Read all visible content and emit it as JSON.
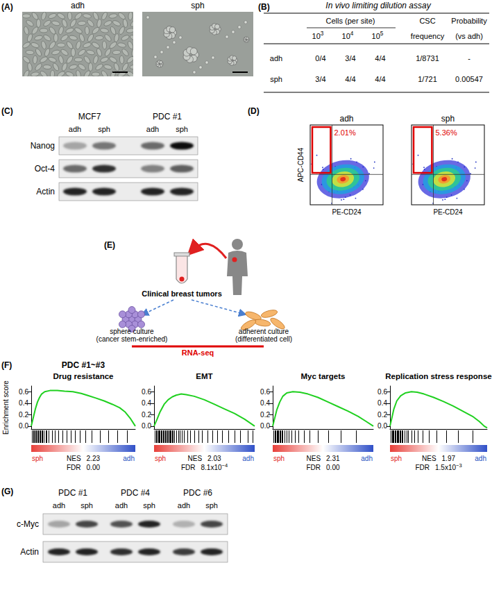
{
  "panels": {
    "A": {
      "label": "(A)",
      "images": [
        "adh",
        "sph"
      ]
    },
    "B": {
      "label": "(B)",
      "title": "In vivo limiting dilution assay",
      "cells_header": "Cells (per site)",
      "doses": [
        {
          "base": "10",
          "sup": "3"
        },
        {
          "base": "10",
          "sup": "4"
        },
        {
          "base": "10",
          "sup": "5"
        }
      ],
      "columns": [
        [
          "CSC",
          "frequency"
        ],
        [
          "Probability",
          "(vs adh)"
        ]
      ],
      "rows": [
        [
          "adh",
          "0/4",
          "3/4",
          "4/4",
          "1/8731",
          "-"
        ],
        [
          "sph",
          "3/4",
          "4/4",
          "4/4",
          "1/721",
          "0.00547"
        ]
      ]
    },
    "C": {
      "label": "(C)",
      "groups": [
        {
          "name": "MCF7",
          "lanes": [
            "adh",
            "sph"
          ]
        },
        {
          "name": "PDC #1",
          "lanes": [
            "adh",
            "sph"
          ]
        }
      ],
      "rows": [
        {
          "name": "Nanog",
          "intensity": [
            0.3,
            0.5,
            0.55,
            0.95
          ]
        },
        {
          "name": "Oct-4",
          "intensity": [
            0.55,
            0.8,
            0.45,
            0.6
          ]
        },
        {
          "name": "Actin",
          "intensity": [
            0.85,
            0.85,
            0.85,
            0.85
          ]
        }
      ]
    },
    "D": {
      "label": "(D)",
      "ylabel": "APC-CD44",
      "xlabel": "PE-CD24",
      "plots": [
        {
          "title": "adh",
          "gate_percent": "2.01%"
        },
        {
          "title": "sph",
          "gate_percent": "5.36%"
        }
      ]
    },
    "E": {
      "label": "(E)",
      "source": "Clinical breast tumors",
      "left": [
        "sphere culture",
        "(cancer stem-enriched)"
      ],
      "right": [
        "adherent culture",
        "(differentiated cell)"
      ],
      "assay": "RNA-seq"
    },
    "F": {
      "label": "(F)",
      "title": "PDC #1~#3",
      "ylabel": "Enrichment score"
    },
    "G": {
      "label": "(G)",
      "groups": [
        {
          "name": "PDC #1",
          "lanes": [
            "adh",
            "sph"
          ]
        },
        {
          "name": "PDC #4",
          "lanes": [
            "adh",
            "sph"
          ]
        },
        {
          "name": "PDC #6",
          "lanes": [
            "adh",
            "sph"
          ]
        }
      ],
      "rows": [
        {
          "name": "c-Myc",
          "intensity": [
            0.3,
            0.7,
            0.65,
            0.85,
            0.25,
            0.7
          ]
        },
        {
          "name": "Actin",
          "intensity": [
            0.85,
            0.85,
            0.8,
            0.85,
            0.75,
            0.85
          ]
        }
      ]
    }
  },
  "chart_data": [
    {
      "type": "line",
      "title": "Drug resistance",
      "color": "#1fd01f",
      "x": [
        0,
        2,
        4,
        6,
        8,
        10,
        13,
        18,
        25,
        32,
        40,
        48,
        55,
        62,
        70,
        78,
        85,
        90,
        95,
        100
      ],
      "values": [
        0,
        0.15,
        0.3,
        0.42,
        0.5,
        0.56,
        0.6,
        0.62,
        0.62,
        0.61,
        0.6,
        0.57,
        0.53,
        0.49,
        0.44,
        0.38,
        0.32,
        0.25,
        0.14,
        0
      ],
      "hits": [
        1,
        2,
        3,
        4,
        5,
        6,
        7,
        8,
        9,
        10,
        11,
        12,
        14,
        15,
        17,
        20,
        23,
        26,
        30,
        34,
        38,
        42,
        47,
        52,
        58,
        66,
        74,
        83,
        92
      ],
      "xlim": [
        0,
        100
      ],
      "ylim": [
        -0.05,
        0.7
      ],
      "yticks": [
        {
          "value": 0,
          "label": "0.0"
        },
        0.2,
        0.4,
        0.6
      ],
      "tick_labels": "y",
      "grid": false,
      "gradient_labels": [
        "sph",
        "adh"
      ],
      "stats": [
        {
          "label": "NES",
          "value": "2.23"
        },
        {
          "label": "FDR",
          "value": "0.00"
        }
      ]
    },
    {
      "type": "line",
      "title": "EMT",
      "color": "#1fd01f",
      "x": [
        0,
        3,
        6,
        10,
        14,
        18,
        22,
        27,
        32,
        40,
        50,
        60,
        70,
        80,
        90,
        100
      ],
      "values": [
        0,
        0.12,
        0.25,
        0.38,
        0.46,
        0.51,
        0.54,
        0.56,
        0.55,
        0.52,
        0.46,
        0.38,
        0.3,
        0.22,
        0.12,
        0
      ],
      "hits": [
        1,
        2,
        3,
        4,
        5,
        6,
        7,
        8,
        9,
        10,
        11,
        12,
        13,
        14,
        15,
        16,
        17,
        18,
        19,
        20,
        22,
        24,
        26,
        28,
        30,
        33,
        36,
        40,
        44,
        48,
        53,
        58,
        63,
        68,
        74,
        80,
        86,
        93,
        98
      ],
      "xlim": [
        0,
        100
      ],
      "ylim": [
        -0.05,
        0.7
      ],
      "yticks": [
        {
          "value": 0,
          "label": "0.0"
        },
        0.2,
        0.4,
        0.6
      ],
      "tick_labels": "y",
      "grid": false,
      "gradient_labels": [
        "sph",
        "adh"
      ],
      "stats": [
        {
          "label": "NES",
          "value": "2.03"
        },
        {
          "label": "FDR",
          "value": "8.1x10",
          "sup": "−4"
        }
      ]
    },
    {
      "type": "line",
      "title": "Myc targets",
      "color": "#1fd01f",
      "x": [
        0,
        2,
        4,
        7,
        10,
        14,
        20,
        27,
        35,
        45,
        55,
        65,
        75,
        85,
        93,
        100
      ],
      "values": [
        0,
        0.14,
        0.28,
        0.42,
        0.52,
        0.58,
        0.6,
        0.59,
        0.56,
        0.5,
        0.42,
        0.34,
        0.26,
        0.17,
        0.08,
        0
      ],
      "hits": [
        1,
        2,
        3,
        4,
        5,
        6,
        7,
        8,
        9,
        10,
        12,
        14,
        16,
        19,
        22,
        26,
        31,
        37,
        45,
        55,
        68,
        83
      ],
      "xlim": [
        0,
        100
      ],
      "ylim": [
        -0.05,
        0.7
      ],
      "yticks": [
        {
          "value": 0,
          "label": "0.0"
        },
        0.2,
        0.4,
        0.6
      ],
      "tick_labels": "y",
      "grid": false,
      "gradient_labels": [
        "sph",
        "adh"
      ],
      "stats": [
        {
          "label": "NES",
          "value": "2.31"
        },
        {
          "label": "FDR",
          "value": "0.00"
        }
      ]
    },
    {
      "type": "line",
      "title": "Replication stress response",
      "color": "#1fd01f",
      "x": [
        0,
        2,
        4,
        7,
        11,
        16,
        22,
        28,
        35,
        45,
        55,
        65,
        75,
        85,
        92,
        97,
        100
      ],
      "values": [
        0,
        0.15,
        0.3,
        0.44,
        0.53,
        0.58,
        0.6,
        0.59,
        0.56,
        0.5,
        0.43,
        0.35,
        0.26,
        0.17,
        0.08,
        0,
        -0.03
      ],
      "hits": [
        1,
        2,
        3,
        4,
        5,
        6,
        7,
        8,
        9,
        10,
        11,
        12,
        13,
        15,
        17,
        19,
        22,
        25,
        29,
        34,
        40,
        48,
        58,
        70,
        85
      ],
      "xlim": [
        0,
        100
      ],
      "ylim": [
        -0.05,
        0.7
      ],
      "yticks": [
        {
          "value": 0,
          "label": "0.0"
        },
        0.2,
        0.4,
        0.6
      ],
      "tick_labels": "y",
      "grid": false,
      "gradient_labels": [
        "sph",
        "adh"
      ],
      "stats": [
        {
          "label": "NES",
          "value": "1.97"
        },
        {
          "label": "FDR",
          "value": "1.5x10",
          "sup": "−3"
        }
      ]
    }
  ]
}
